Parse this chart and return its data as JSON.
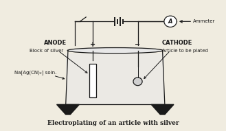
{
  "title": "Electroplating of an article with silver",
  "title_fontsize": 6.5,
  "bg_color": "#f0ece0",
  "line_color": "#1a1a1a",
  "label_anode": "ANODE",
  "label_cathode": "CATHODE",
  "label_block": "Block of silver",
  "label_article": "Article to be plated",
  "label_soln": "Na[Ag(CN)₂] soln.",
  "label_ammeter": "Ammeter",
  "ammeter_symbol": "A",
  "xlim": [
    0,
    10
  ],
  "ylim": [
    0,
    6.5
  ]
}
